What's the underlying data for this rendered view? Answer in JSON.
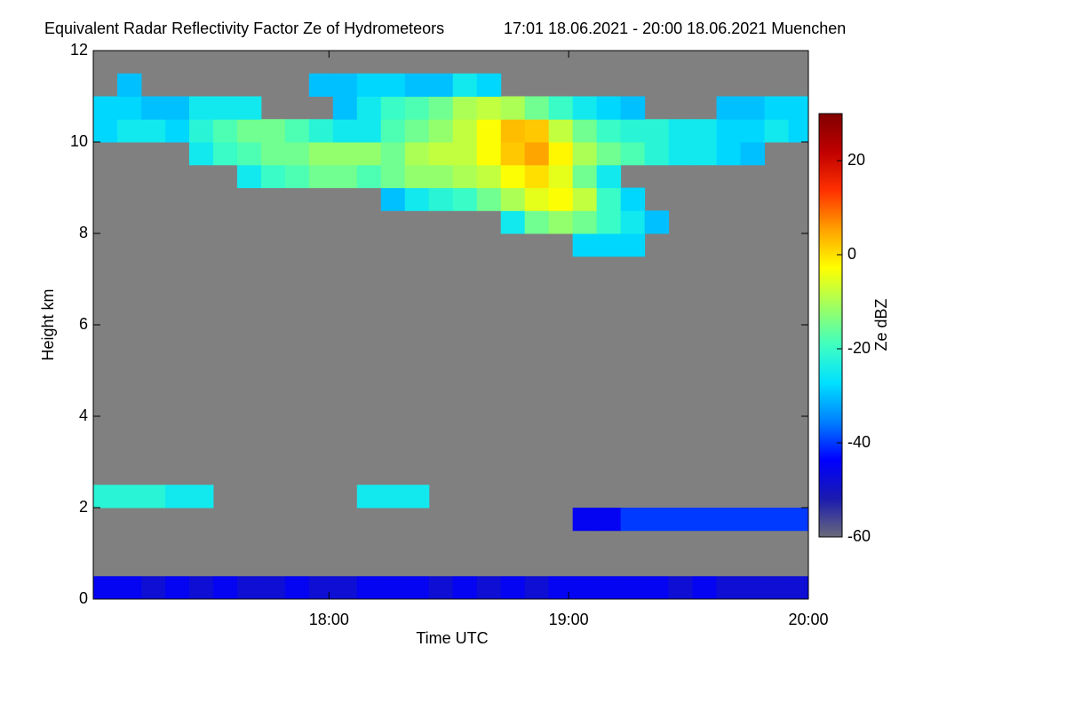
{
  "chart_data": {
    "type": "heatmap",
    "title": "Equivalent Radar Reflectivity Factor Ze of Hydrometeors",
    "subtitle": "17:01 18.06.2021 - 20:00 18.06.2021 Muenchen",
    "xlabel": "Time UTC",
    "ylabel": "Height km",
    "colorbar_label": "Ze dBZ",
    "background": "#808080",
    "xlim": [
      1021,
      1200
    ],
    "xticks": [
      {
        "value": 1080,
        "label": "18:00"
      },
      {
        "value": 1140,
        "label": "19:00"
      },
      {
        "value": 1200,
        "label": "20:00"
      }
    ],
    "ylim": [
      0,
      12
    ],
    "yticks": [
      0,
      2,
      4,
      6,
      8,
      10,
      12
    ],
    "clim": [
      -60,
      30
    ],
    "cticks": [
      -60,
      -40,
      -20,
      0,
      20
    ],
    "colormap": [
      "#6a6a7a",
      "#1a1ab0",
      "#0000ff",
      "#0080ff",
      "#00e0ff",
      "#40ffc0",
      "#a0ff60",
      "#ffff00",
      "#ffa000",
      "#ff3000",
      "#c00000",
      "#800000"
    ],
    "xbins": [
      1021,
      1027,
      1033,
      1039,
      1045,
      1051,
      1057,
      1063,
      1069,
      1075,
      1081,
      1087,
      1093,
      1099,
      1105,
      1111,
      1117,
      1123,
      1129,
      1135,
      1141,
      1147,
      1153,
      1159,
      1165,
      1171,
      1177,
      1183,
      1189,
      1195,
      1200
    ],
    "rows": [
      {
        "y0": 0,
        "y1": 0.5,
        "values": [
          -45,
          -45,
          -48,
          -45,
          -48,
          -45,
          -48,
          -48,
          -45,
          -48,
          -48,
          -45,
          -45,
          -45,
          -48,
          -45,
          -48,
          -45,
          -48,
          -45,
          -45,
          -45,
          -45,
          -45,
          -48,
          -45,
          -48,
          -48,
          -48,
          -48
        ]
      },
      {
        "y0": 1.5,
        "y1": 2,
        "values": [
          null,
          null,
          null,
          null,
          null,
          null,
          null,
          null,
          null,
          null,
          null,
          null,
          null,
          null,
          null,
          null,
          null,
          null,
          null,
          null,
          -45,
          -45,
          -40,
          -40,
          -40,
          -40,
          -40,
          -40,
          -40,
          -40
        ]
      },
      {
        "y0": 2,
        "y1": 2.5,
        "values": [
          -22,
          -22,
          -22,
          -25,
          -25,
          null,
          null,
          null,
          null,
          null,
          null,
          -25,
          -25,
          -25,
          null,
          null,
          null,
          null,
          null,
          null,
          null,
          null,
          null,
          null,
          null,
          null,
          null,
          null,
          null,
          null
        ]
      },
      {
        "y0": 7.5,
        "y1": 8,
        "values": [
          null,
          null,
          null,
          null,
          null,
          null,
          null,
          null,
          null,
          null,
          null,
          null,
          null,
          null,
          null,
          null,
          null,
          null,
          null,
          null,
          -28,
          -28,
          -28,
          null,
          null,
          null,
          null,
          null,
          null,
          null
        ]
      },
      {
        "y0": 8,
        "y1": 8.5,
        "values": [
          null,
          null,
          null,
          null,
          null,
          null,
          null,
          null,
          null,
          null,
          null,
          null,
          null,
          null,
          null,
          null,
          null,
          -25,
          -15,
          -12,
          -15,
          -20,
          -25,
          -30,
          null,
          null,
          null,
          null,
          null,
          null
        ]
      },
      {
        "y0": 8.5,
        "y1": 9,
        "values": [
          null,
          null,
          null,
          null,
          null,
          null,
          null,
          null,
          null,
          null,
          null,
          null,
          -30,
          -25,
          -22,
          -20,
          -15,
          -10,
          -5,
          -3,
          -8,
          -20,
          -28,
          null,
          null,
          null,
          null,
          null,
          null,
          null
        ]
      },
      {
        "y0": 9,
        "y1": 9.5,
        "values": [
          null,
          null,
          null,
          null,
          null,
          null,
          -25,
          -20,
          -18,
          -15,
          -15,
          -18,
          -15,
          -12,
          -12,
          -10,
          -8,
          -3,
          0,
          -5,
          -15,
          -25,
          null,
          null,
          null,
          null,
          null,
          null,
          null,
          null
        ]
      },
      {
        "y0": 9.5,
        "y1": 10,
        "values": [
          null,
          null,
          null,
          null,
          -25,
          -20,
          -18,
          -15,
          -15,
          -12,
          -12,
          -12,
          -15,
          -10,
          -8,
          -8,
          -3,
          2,
          5,
          -2,
          -10,
          -15,
          -18,
          -22,
          -25,
          -25,
          -28,
          -30,
          null,
          null
        ]
      },
      {
        "y0": 10,
        "y1": 10.5,
        "values": [
          -28,
          -25,
          -25,
          -28,
          -22,
          -18,
          -15,
          -15,
          -18,
          -22,
          -25,
          -25,
          -18,
          -15,
          -12,
          -8,
          -3,
          3,
          2,
          -8,
          -15,
          -20,
          -22,
          -22,
          -25,
          -25,
          -28,
          -28,
          -25,
          -28
        ]
      },
      {
        "y0": 10.5,
        "y1": 11,
        "values": [
          -28,
          -28,
          -30,
          -30,
          -25,
          -25,
          -25,
          null,
          null,
          null,
          -30,
          -25,
          -20,
          -18,
          -15,
          -10,
          -8,
          -10,
          -15,
          -20,
          -25,
          -28,
          -30,
          null,
          null,
          null,
          -30,
          -30,
          -28,
          -28
        ]
      },
      {
        "y0": 11,
        "y1": 11.5,
        "values": [
          null,
          -30,
          null,
          null,
          null,
          null,
          null,
          null,
          null,
          -30,
          -30,
          -28,
          -28,
          -30,
          -30,
          -25,
          -28,
          null,
          null,
          null,
          null,
          null,
          null,
          null,
          null,
          null,
          null,
          null,
          null,
          null
        ]
      }
    ]
  }
}
